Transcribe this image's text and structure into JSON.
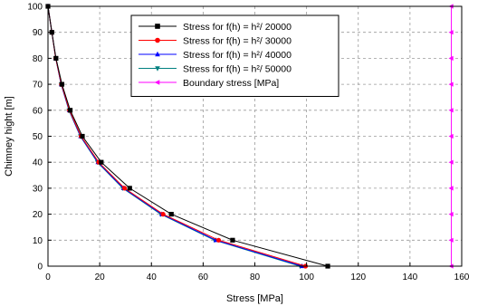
{
  "chart_data": {
    "type": "line",
    "xlabel": "Stress [MPa]",
    "ylabel": "Chimney hight [m]",
    "xlim": [
      0,
      160
    ],
    "ylim": [
      0,
      100
    ],
    "xticks": [
      0,
      20,
      40,
      60,
      80,
      100,
      120,
      140,
      160
    ],
    "yticks": [
      0,
      10,
      20,
      30,
      40,
      50,
      60,
      70,
      80,
      90,
      100
    ],
    "grid": true,
    "legend_position": "top-center",
    "series": [
      {
        "name": "Stress for f(h) = h²/ 20000",
        "color": "#000000",
        "marker": "square",
        "points": [
          [
            0,
            100
          ],
          [
            1.5,
            90
          ],
          [
            3.1,
            80
          ],
          [
            5.4,
            70
          ],
          [
            8.6,
            60
          ],
          [
            13.3,
            50
          ],
          [
            20.6,
            40
          ],
          [
            31.6,
            30
          ],
          [
            47.7,
            20
          ],
          [
            71.4,
            10
          ],
          [
            108.2,
            0
          ]
        ]
      },
      {
        "name": "Stress for f(h) = h²/ 30000",
        "color": "#ff0000",
        "marker": "circle",
        "points": [
          [
            0,
            100
          ],
          [
            1.5,
            90
          ],
          [
            3.0,
            80
          ],
          [
            5.2,
            70
          ],
          [
            8.3,
            60
          ],
          [
            12.8,
            50
          ],
          [
            19.6,
            40
          ],
          [
            29.6,
            30
          ],
          [
            44.5,
            20
          ],
          [
            66.0,
            10
          ],
          [
            99.6,
            0
          ]
        ]
      },
      {
        "name": "Stress for f(h) = h²/ 40000",
        "color": "#0000ff",
        "marker": "triangle-up",
        "points": [
          [
            0,
            100
          ],
          [
            1.5,
            90
          ],
          [
            3.0,
            80
          ],
          [
            5.1,
            70
          ],
          [
            8.2,
            60
          ],
          [
            12.6,
            50
          ],
          [
            19.3,
            40
          ],
          [
            29.2,
            30
          ],
          [
            44.0,
            20
          ],
          [
            64.9,
            10
          ],
          [
            98.3,
            0
          ]
        ]
      },
      {
        "name": "Stress for f(h) = h²/ 50000",
        "color": "#008080",
        "marker": "triangle-down",
        "points": [
          [
            0,
            100
          ],
          [
            1.5,
            90
          ],
          [
            3.0,
            80
          ],
          [
            5.1,
            70
          ],
          [
            8.1,
            60
          ],
          [
            12.5,
            50
          ],
          [
            19.1,
            40
          ],
          [
            28.9,
            30
          ],
          [
            43.6,
            20
          ],
          [
            64.4,
            10
          ],
          [
            97.5,
            0
          ]
        ]
      },
      {
        "name": "Boundary stress [MPa]",
        "color": "#ff00ff",
        "marker": "triangle-left",
        "points": [
          [
            156,
            100
          ],
          [
            156,
            90
          ],
          [
            156,
            80
          ],
          [
            156,
            70
          ],
          [
            156,
            60
          ],
          [
            156,
            50
          ],
          [
            156,
            40
          ],
          [
            156,
            30
          ],
          [
            156,
            20
          ],
          [
            156,
            10
          ],
          [
            156,
            0
          ]
        ]
      }
    ]
  }
}
